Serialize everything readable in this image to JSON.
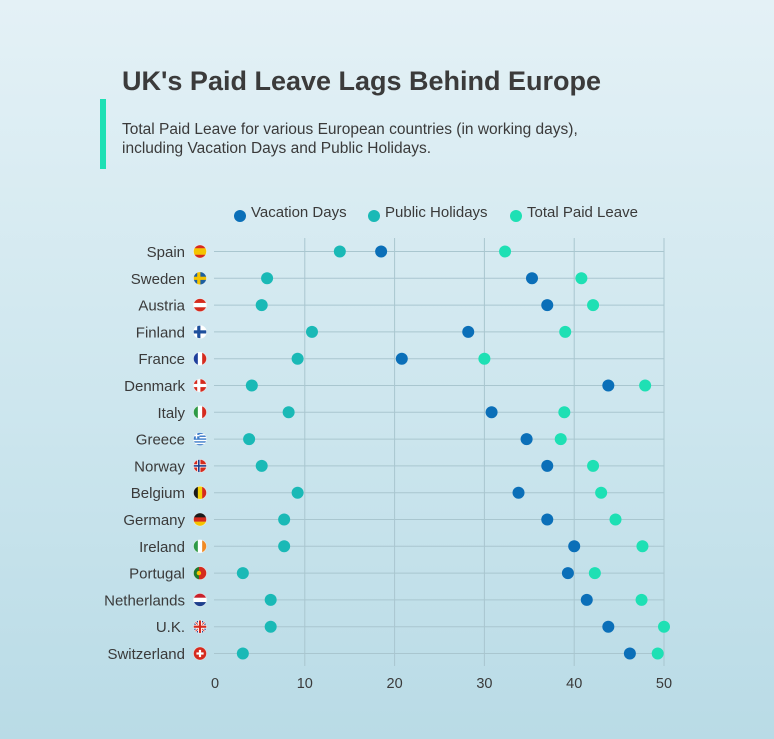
{
  "header": {
    "title": "UK's Paid Leave Lags Behind Europe",
    "subtitle": "Total Paid Leave for various European countries (in working days), including Vacation Days and Public Holidays."
  },
  "chart_data": {
    "type": "scatter",
    "title": "UK's Paid Leave Lags Behind Europe",
    "subtitle": "Total Paid Leave for various European countries (in working days), including Vacation Days and Public Holidays.",
    "categories": [
      "Spain",
      "Sweden",
      "Austria",
      "Finland",
      "France",
      "Denmark",
      "Italy",
      "Greece",
      "Norway",
      "Belgium",
      "Germany",
      "Ireland",
      "Portugal",
      "Netherlands",
      "U.K.",
      "Switzerland"
    ],
    "series": [
      {
        "name": "Vacation Days",
        "color": "#0b6fb8",
        "values": [
          18.5,
          35.3,
          37,
          28.2,
          20.8,
          43.8,
          30.8,
          34.7,
          37,
          33.8,
          37,
          40,
          39.3,
          41.4,
          43.8,
          46.2
        ]
      },
      {
        "name": "Public Holidays",
        "color": "#1ab9b6",
        "values": [
          13.9,
          5.8,
          5.2,
          10.8,
          9.2,
          4.1,
          8.2,
          3.8,
          5.2,
          9.2,
          7.7,
          7.7,
          3.1,
          6.2,
          6.2,
          3.1
        ]
      },
      {
        "name": "Total Paid Leave",
        "color": "#1ee0b4",
        "values": [
          32.3,
          40.8,
          42.1,
          39,
          30,
          47.9,
          38.9,
          38.5,
          42.1,
          43,
          44.6,
          47.6,
          42.3,
          47.5,
          50,
          49.3
        ]
      }
    ],
    "flag_icons": [
      "spain-flag-icon",
      "sweden-flag-icon",
      "austria-flag-icon",
      "finland-flag-icon",
      "france-flag-icon",
      "denmark-flag-icon",
      "italy-flag-icon",
      "greece-flag-icon",
      "norway-flag-icon",
      "belgium-flag-icon",
      "germany-flag-icon",
      "ireland-flag-icon",
      "portugal-flag-icon",
      "netherlands-flag-icon",
      "uk-flag-icon",
      "switzerland-flag-icon"
    ],
    "xlim": [
      0,
      50
    ],
    "xticks": [
      0,
      10,
      20,
      30,
      40,
      50
    ],
    "xlabel": "",
    "ylabel": "",
    "grid": true,
    "legend_position": "top-center"
  }
}
